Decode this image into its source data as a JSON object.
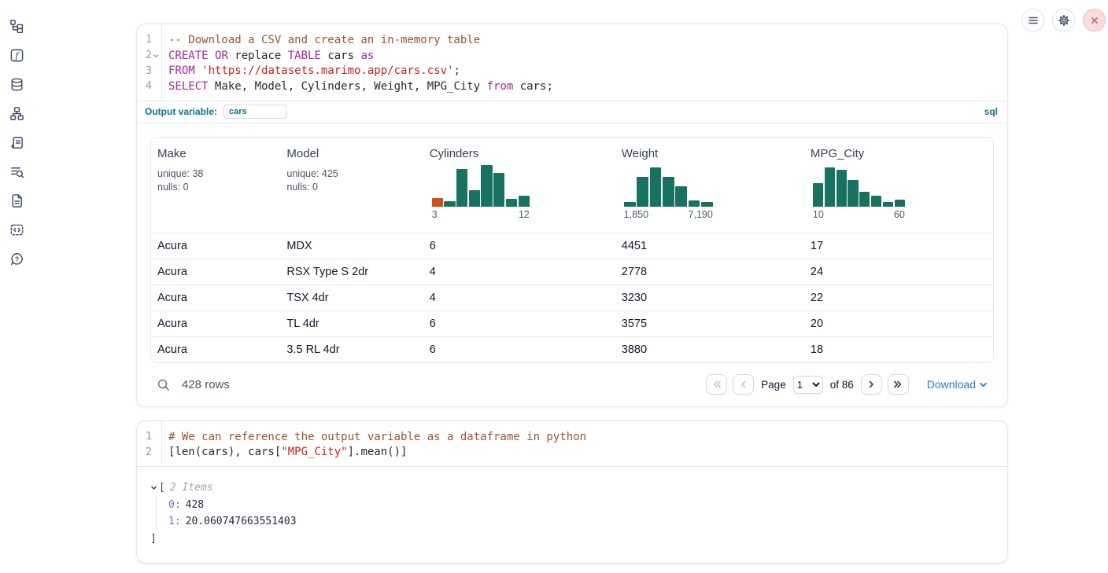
{
  "sidebar": {
    "icons": [
      {
        "name": "file-explorer-icon"
      },
      {
        "name": "variables-icon"
      },
      {
        "name": "datasources-icon"
      },
      {
        "name": "dependency-graph-icon"
      },
      {
        "name": "scratchpad-icon"
      },
      {
        "name": "logs-icon"
      },
      {
        "name": "documentation-icon"
      },
      {
        "name": "snippets-icon"
      },
      {
        "name": "help-icon"
      }
    ]
  },
  "topbar": {
    "buttons": [
      {
        "name": "menu-button"
      },
      {
        "name": "settings-button"
      },
      {
        "name": "shutdown-button"
      }
    ]
  },
  "colors": {
    "accent_teal": "#0e7490",
    "histogram_green": "#17735f",
    "histogram_orange": "#c8511d",
    "link_blue": "#1c7ed6",
    "keyword": "#a626a4",
    "comment": "#a0522d",
    "string": "#c5221f"
  },
  "cells": [
    {
      "type": "sql",
      "lines": [
        {
          "num": "1",
          "fold": false,
          "tokens": [
            {
              "c": "com",
              "t": "-- Download a CSV and create an in-memory table"
            }
          ]
        },
        {
          "num": "2",
          "fold": true,
          "tokens": [
            {
              "c": "kw",
              "t": "CREATE"
            },
            {
              "c": "pl",
              "t": " "
            },
            {
              "c": "kw",
              "t": "OR"
            },
            {
              "c": "pl",
              "t": " replace "
            },
            {
              "c": "kw",
              "t": "TABLE"
            },
            {
              "c": "pl",
              "t": " cars "
            },
            {
              "c": "kw",
              "t": "as"
            }
          ]
        },
        {
          "num": "3",
          "fold": false,
          "tokens": [
            {
              "c": "kw",
              "t": "FROM"
            },
            {
              "c": "pl",
              "t": " "
            },
            {
              "c": "str",
              "t": "'https://datasets.marimo.app/cars.csv'"
            },
            {
              "c": "pl",
              "t": ";"
            }
          ]
        },
        {
          "num": "4",
          "fold": false,
          "tokens": [
            {
              "c": "kw",
              "t": "SELECT"
            },
            {
              "c": "pl",
              "t": " Make, Model, Cylinders, Weight, MPG_City "
            },
            {
              "c": "kw",
              "t": "from"
            },
            {
              "c": "pl",
              "t": " cars;"
            }
          ]
        }
      ],
      "output_variable_label": "Output variable:",
      "output_variable_value": "cars",
      "language_tag": "sql"
    },
    {
      "type": "python",
      "lines": [
        {
          "num": "1",
          "fold": false,
          "tokens": [
            {
              "c": "com",
              "t": "# We can reference the output variable as a dataframe in python"
            }
          ]
        },
        {
          "num": "2",
          "fold": false,
          "tokens": [
            {
              "c": "pl",
              "t": "[len(cars), cars["
            },
            {
              "c": "str",
              "t": "\"MPG_City\""
            },
            {
              "c": "pl",
              "t": "].mean()]"
            }
          ]
        }
      ]
    }
  ],
  "table": {
    "columns": [
      {
        "name": "Make",
        "stats": [
          "unique: 38",
          "nulls: 0"
        ]
      },
      {
        "name": "Model",
        "stats": [
          "unique: 425",
          "nulls: 0"
        ]
      },
      {
        "name": "Cylinders",
        "histogram": {
          "type": "bar",
          "values": [
            20,
            12,
            88,
            38,
            97,
            80,
            18,
            25
          ],
          "highlight_index": 0,
          "min_label": "3",
          "max_label": "12",
          "size": "cyl"
        }
      },
      {
        "name": "Weight",
        "histogram": {
          "type": "bar",
          "values": [
            10,
            70,
            92,
            70,
            47,
            15,
            10
          ],
          "highlight_index": -1,
          "min_label": "1,850",
          "max_label": "7,190",
          "size": "wt"
        }
      },
      {
        "name": "MPG_City",
        "histogram": {
          "type": "bar",
          "values": [
            55,
            92,
            87,
            63,
            35,
            26,
            10,
            17
          ],
          "highlight_index": -1,
          "min_label": "10",
          "max_label": "60",
          "size": "mpg"
        }
      }
    ],
    "rows": [
      [
        "Acura",
        "MDX",
        "6",
        "4451",
        "17"
      ],
      [
        "Acura",
        "RSX Type S 2dr",
        "4",
        "2778",
        "24"
      ],
      [
        "Acura",
        "TSX 4dr",
        "4",
        "3230",
        "22"
      ],
      [
        "Acura",
        "TL 4dr",
        "6",
        "3575",
        "20"
      ],
      [
        "Acura",
        "3.5 RL 4dr",
        "6",
        "3880",
        "18"
      ]
    ],
    "footer": {
      "row_count": "428 rows",
      "page_label": "Page",
      "page_value": "1",
      "of_label": "of 86",
      "download_label": "Download"
    }
  },
  "tree": {
    "open_bracket": "[",
    "items_label": "2 Items",
    "entries": [
      {
        "key": "0:",
        "value": "428"
      },
      {
        "key": "1:",
        "value": "20.060747663551403"
      }
    ],
    "close_bracket": "]"
  }
}
